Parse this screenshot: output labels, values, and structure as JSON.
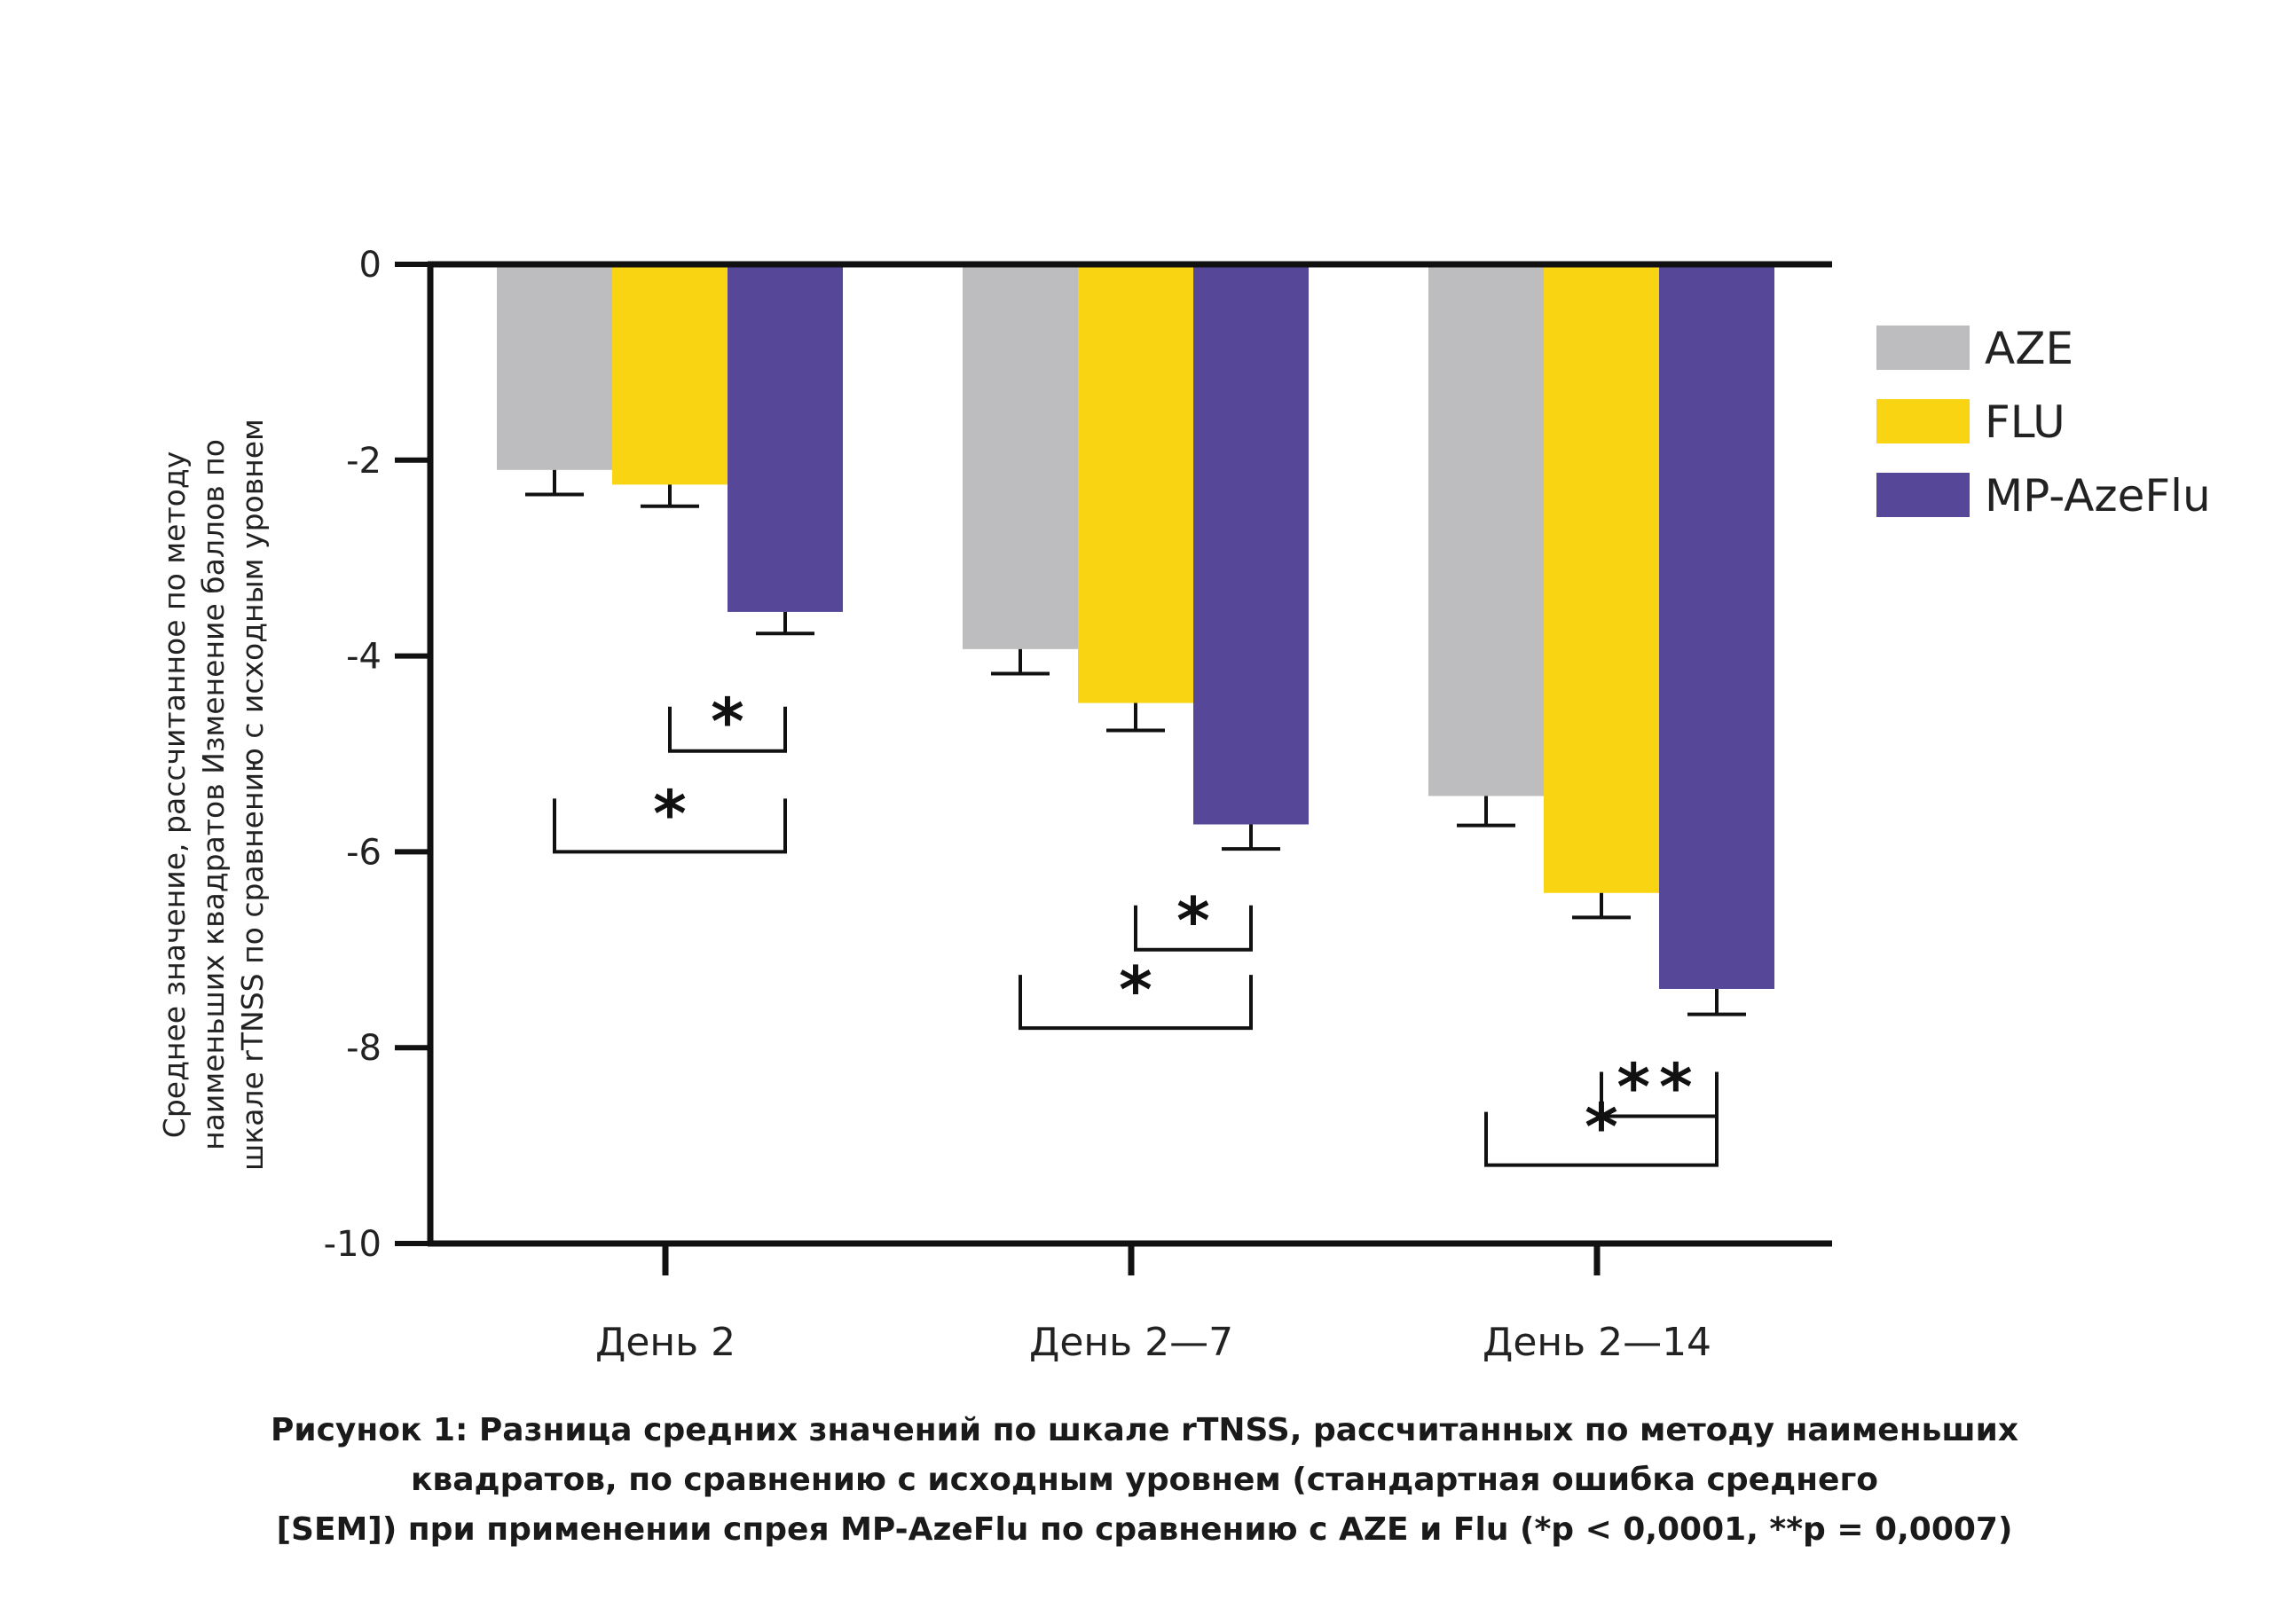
{
  "chart_data": {
    "type": "bar",
    "categories": [
      "День 2",
      "День 2—7",
      "День 2—14"
    ],
    "series": [
      {
        "name": "AZE",
        "color": "#bdbdbf",
        "values": [
          -2.1,
          -3.93,
          -5.43
        ],
        "errors": [
          0.25,
          0.25,
          0.3
        ]
      },
      {
        "name": "FLU",
        "color": "#f8d413",
        "values": [
          -2.25,
          -4.48,
          -6.42
        ],
        "errors": [
          0.22,
          0.28,
          0.25
        ]
      },
      {
        "name": "MP-AzeFlu",
        "color": "#574798",
        "values": [
          -3.55,
          -5.72,
          -7.4
        ],
        "errors": [
          0.22,
          0.25,
          0.26
        ]
      }
    ],
    "ylabel_lines": [
      "Среднее значение, рассчитанное по методу",
      "наименьших квадратов Изменение баллов по",
      "шкале rTNSS по сравнению с исходным уровнем"
    ],
    "ylim": [
      -10,
      0
    ],
    "yticks": [
      "0",
      "-2",
      "-4",
      "-6",
      "-8",
      "-10"
    ],
    "significance": [
      {
        "group": 0,
        "from": 1,
        "to": 2,
        "y": -4.97,
        "label": "*"
      },
      {
        "group": 0,
        "from": 0,
        "to": 2,
        "y": -6.0,
        "label": "*"
      },
      {
        "group": 1,
        "from": 1,
        "to": 2,
        "y": -7.0,
        "label": "*"
      },
      {
        "group": 1,
        "from": 0,
        "to": 2,
        "y": -7.8,
        "label": "*"
      },
      {
        "group": 2,
        "from": 1,
        "to": 2,
        "y": -8.7,
        "label": "**"
      },
      {
        "group": 2,
        "from": 0,
        "to": 2,
        "y": -9.2,
        "label": "*"
      }
    ],
    "legend_position": "right",
    "grid": false
  },
  "caption_lines": [
    "Рисунок 1: Разница средних значений по шкале rTNSS, рассчитанных по методу наименьших",
    "квадратов, по сравнению с исходным уровнем (стандартная ошибка среднего",
    "[SEM]) при применении спрея MP-AzeFlu по сравнению с AZE и Flu (*p < 0,0001, **p = 0,0007)"
  ]
}
